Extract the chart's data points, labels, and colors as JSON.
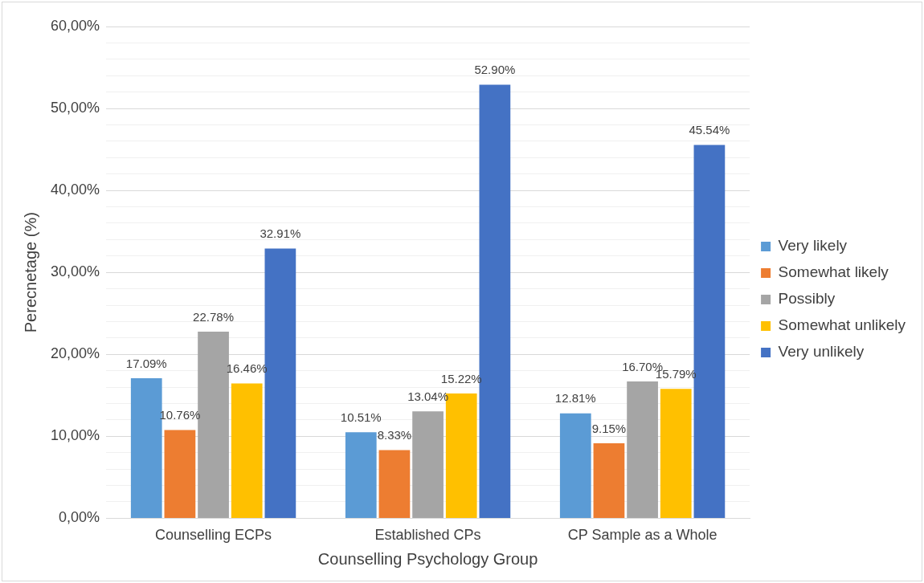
{
  "chart_data": {
    "type": "bar",
    "xlabel": "Counselling Psychology Group",
    "ylabel": "Perecnetage (%)",
    "categories": [
      "Counselling ECPs",
      "Established CPs",
      "CP Sample as a Whole"
    ],
    "series": [
      {
        "name": "Very likely",
        "color": "#5b9bd5",
        "values": [
          17.09,
          10.51,
          12.81
        ],
        "value_labels": [
          "17.09%",
          "10.51%",
          "12.81%"
        ]
      },
      {
        "name": "Somewhat likely",
        "color": "#ed7d31",
        "values": [
          10.76,
          8.33,
          9.15
        ],
        "value_labels": [
          "10.76%",
          "8.33%",
          "9.15%"
        ]
      },
      {
        "name": "Possibly",
        "color": "#a5a5a5",
        "values": [
          22.78,
          13.04,
          16.7
        ],
        "value_labels": [
          "22.78%",
          "13.04%",
          "16.70%"
        ]
      },
      {
        "name": "Somewhat unlikely",
        "color": "#ffc000",
        "values": [
          16.46,
          15.22,
          15.79
        ],
        "value_labels": [
          "16.46%",
          "15.22%",
          "15.79%"
        ]
      },
      {
        "name": "Very unlikely",
        "color": "#4472c4",
        "values": [
          32.91,
          52.9,
          45.54
        ],
        "value_labels": [
          "32.91%",
          "52.90%",
          "45.54%"
        ]
      }
    ],
    "ylim": [
      0,
      60
    ],
    "yticks": [
      {
        "value": 0,
        "label": "0,00%"
      },
      {
        "value": 2,
        "label": null
      },
      {
        "value": 4,
        "label": null
      },
      {
        "value": 6,
        "label": null
      },
      {
        "value": 8,
        "label": null
      },
      {
        "value": 10,
        "label": "10,00%"
      },
      {
        "value": 12,
        "label": null
      },
      {
        "value": 14,
        "label": null
      },
      {
        "value": 16,
        "label": null
      },
      {
        "value": 18,
        "label": null
      },
      {
        "value": 20,
        "label": "20,00%"
      },
      {
        "value": 22,
        "label": null
      },
      {
        "value": 24,
        "label": null
      },
      {
        "value": 26,
        "label": null
      },
      {
        "value": 28,
        "label": null
      },
      {
        "value": 30,
        "label": "30,00%"
      },
      {
        "value": 32,
        "label": null
      },
      {
        "value": 34,
        "label": null
      },
      {
        "value": 36,
        "label": null
      },
      {
        "value": 38,
        "label": null
      },
      {
        "value": 40,
        "label": "40,00%"
      },
      {
        "value": 42,
        "label": null
      },
      {
        "value": 44,
        "label": null
      },
      {
        "value": 46,
        "label": null
      },
      {
        "value": 48,
        "label": null
      },
      {
        "value": 50,
        "label": "50,00%"
      },
      {
        "value": 52,
        "label": null
      },
      {
        "value": 54,
        "label": null
      },
      {
        "value": 56,
        "label": null
      },
      {
        "value": 58,
        "label": null
      },
      {
        "value": 60,
        "label": "60,00%"
      }
    ],
    "grid": "y",
    "legend": "right"
  }
}
